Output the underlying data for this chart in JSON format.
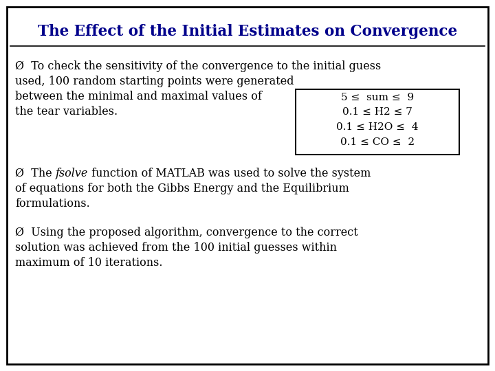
{
  "title": "The Effect of the Initial Estimates on Convergence",
  "title_color": "#00008B",
  "title_fontsize": 15.5,
  "background_color": "#FFFFFF",
  "border_color": "#000000",
  "text_color": "#000000",
  "body_fontsize": 11.5,
  "bullet_char": "Ø",
  "bullet1_lines": [
    "Ø  To check the sensitivity of the convergence to the initial guess",
    "used, 100 random starting points were generated",
    "between the minimal and maximal values of",
    "the tear variables."
  ],
  "box_lines": [
    "5 ≤  sum ≤  9",
    "0.1 ≤ H2 ≤ 7",
    "0.1 ≤ H2O ≤  4",
    "0.1 ≤ CO ≤  2"
  ],
  "bullet2_pre": "Ø  The ",
  "bullet2_italic": "fsolve",
  "bullet2_post": " function of MATLAB was used to solve the system",
  "bullet2_line2": "of equations for both the Gibbs Energy and the Equilibrium",
  "bullet2_line3": "formulations.",
  "bullet3_lines": [
    "Ø  Using the proposed algorithm, convergence to the correct",
    "solution was achieved from the 100 initial guesses within",
    "maximum of 10 iterations."
  ]
}
